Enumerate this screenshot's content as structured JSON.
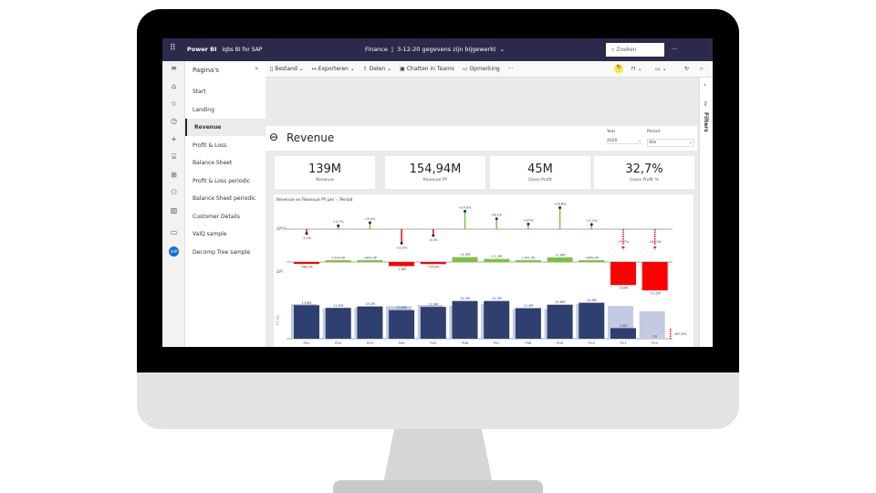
{
  "app": {
    "brand": "Power BI",
    "workspace": "iqbs BI for SAP",
    "title": "Finance",
    "status": "3-12-20 gegevens zijn bijgewerkt",
    "search_placeholder": "Zoeken",
    "more": "···"
  },
  "toolbar": {
    "file": "Bestand",
    "export": "Exporteren",
    "share": "Delen",
    "teams": "Chatten in Teams",
    "comment": "Opmerking",
    "more": "···"
  },
  "pages": {
    "title": "Pagina's",
    "items": [
      "Start",
      "Landing",
      "Revenue",
      "Profit & Loss",
      "Balance Sheet",
      "Profit & Loss periodic",
      "Balance Sheet periodic",
      "Customer Details",
      "ValQ sample",
      "Decomp Tree sample"
    ],
    "active": "Revenue"
  },
  "filters": {
    "label": "Filters"
  },
  "report": {
    "title": "Revenue",
    "slicers": [
      {
        "label": "Year",
        "value": "2020"
      },
      {
        "label": "Period",
        "value": "Alle"
      }
    ],
    "cards": [
      {
        "value": "139M",
        "label": "Revenue"
      },
      {
        "value": "154,94M",
        "label": "Revenue PY"
      },
      {
        "value": "45M",
        "label": "Gross Profit"
      },
      {
        "value": "32,7%",
        "label": "Gross Profit %"
      }
    ]
  },
  "chart_data": {
    "type": "bar",
    "title": "Revenue en Revenue PY per -, Period",
    "categories": [
      "P01",
      "P02",
      "P03",
      "P04",
      "P05",
      "P06",
      "P07",
      "P08",
      "P09",
      "P10",
      "P11",
      "P12"
    ],
    "row_labels": [
      "ΔPY%",
      "ΔPY",
      "AC",
      "PY"
    ],
    "series": [
      {
        "name": "AC",
        "values": [
          13.6,
          12.5,
          13.1,
          11.6,
          12.9,
          15.3,
          15.3,
          12.4,
          13.8,
          14.6,
          4.3,
          0
        ],
        "labels": [
          "13,6M",
          "12,5M",
          "13,1M",
          "11,6M",
          "12,9M",
          "15,3M",
          "15,3M",
          "12,4M",
          "13,8M",
          "14,6M",
          "4,3M",
          "(0)"
        ]
      },
      {
        "name": "PY",
        "values": [
          14.06,
          12.18,
          12.48,
          13.2,
          13.7,
          13.4,
          14.1,
          12.07,
          12.0,
          14.0,
          13.3,
          11.1
        ]
      },
      {
        "name": "ΔPY",
        "values": [
          -0.462,
          0.324,
          0.623,
          -1.6,
          -0.795,
          1.9,
          1.2,
          0.3315,
          1.8,
          0.6,
          -9.0,
          -11.1
        ],
        "labels": [
          "-462,0K",
          "+324,0K",
          "+623,0K",
          "-1,6M",
          "-795,0K",
          "+1,9M",
          "+1,2M",
          "+331,5K",
          "+1,8M",
          "+600,0K",
          "-9,0M",
          "-11,1M"
        ]
      },
      {
        "name": "ΔPY%",
        "values": [
          -3.4,
          2.7,
          5.0,
          -11.0,
          -5.0,
          14.0,
          8.1,
          4.0,
          16.8,
          3.7,
          -70.7,
          -100.0
        ],
        "labels": [
          "-3,4%",
          "+2,7%",
          "+5,0%",
          "-11,0%",
          "-5,0%",
          "+14,0%",
          "+8,1%",
          "+4,0%",
          "+16,8%",
          "+3,7%",
          "-70,7%",
          "-100,0%"
        ]
      }
    ],
    "end_label": "-100,0%",
    "colors": {
      "ac": "#2f3f6f",
      "py": "#c3cbe2",
      "positive": "#7cc242",
      "negative": "#ff0000"
    }
  }
}
